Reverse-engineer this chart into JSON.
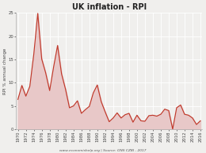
{
  "title": "UK inflation - RPI",
  "ylabel": "RPI % annual change",
  "source_text": "www.economishelp.org | Source: ONS CZBI - 2017",
  "ylim": [
    0,
    25
  ],
  "yticks": [
    0,
    5,
    10,
    15,
    20,
    25
  ],
  "background_color": "#f0efed",
  "plot_bg_color": "#f0efed",
  "line_color": "#c0392b",
  "fill_color": "#e8c8c8",
  "years": [
    1970,
    1971,
    1972,
    1973,
    1974,
    1975,
    1976,
    1977,
    1978,
    1979,
    1980,
    1981,
    1982,
    1983,
    1984,
    1985,
    1986,
    1987,
    1988,
    1989,
    1990,
    1991,
    1992,
    1993,
    1994,
    1995,
    1996,
    1997,
    1998,
    1999,
    2000,
    2001,
    2002,
    2003,
    2004,
    2005,
    2006,
    2007,
    2008,
    2009,
    2010,
    2011,
    2012,
    2013,
    2014,
    2015,
    2016
  ],
  "values": [
    6.4,
    9.4,
    7.1,
    9.2,
    16.1,
    24.9,
    15.1,
    12.1,
    8.3,
    13.4,
    18.0,
    11.9,
    8.6,
    4.6,
    5.0,
    6.1,
    3.4,
    4.2,
    4.9,
    7.8,
    9.5,
    5.9,
    3.7,
    1.6,
    2.4,
    3.5,
    2.4,
    3.1,
    3.4,
    1.5,
    3.0,
    1.8,
    1.7,
    2.9,
    3.0,
    2.8,
    3.2,
    4.3,
    4.0,
    0.0,
    4.6,
    5.2,
    3.2,
    3.0,
    2.4,
    1.0,
    1.8
  ],
  "xtick_every": 2,
  "grid_color": "#ffffff",
  "grid_lw": 0.6,
  "title_fontsize": 7,
  "ylabel_fontsize": 4,
  "tick_fontsize": 3.8,
  "source_fontsize": 3.2,
  "line_lw": 0.85
}
